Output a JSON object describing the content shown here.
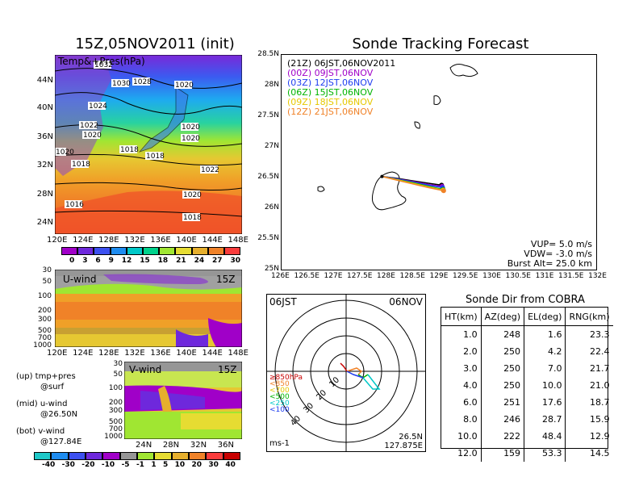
{
  "left_panel": {
    "title": "15Z,05NOV2011 (init)",
    "map_label": "Temp&+Pres(hPa)",
    "lat_labels": [
      "44N",
      "40N",
      "36N",
      "32N",
      "28N",
      "24N"
    ],
    "lon_labels": [
      "120E",
      "124E",
      "128E",
      "132E",
      "136E",
      "140E",
      "144E",
      "148E"
    ],
    "isobar_labels": [
      "1032",
      "1030",
      "1028",
      "1020",
      "1024",
      "1022",
      "1020",
      "1020",
      "1020",
      "1018",
      "1018",
      "1018",
      "1016",
      "1022",
      "1020",
      "1018",
      "1020"
    ],
    "temp_colorbar": [
      "0",
      "3",
      "6",
      "9",
      "12",
      "15",
      "18",
      "21",
      "24",
      "27",
      "30"
    ],
    "temp_colors": [
      "#a000c8",
      "#6e28dc",
      "#3c50f0",
      "#1e8cf0",
      "#00c8c8",
      "#00d28c",
      "#a0e632",
      "#e6dc32",
      "#e6af2d",
      "#f08228",
      "#fa3c3c"
    ],
    "uwind_label": "U-wind",
    "uwind_time": "15Z",
    "vwind_label": "V-wind",
    "vwind_time": "15Z",
    "pressure_labels": [
      "30",
      "50",
      "100",
      "200",
      "300",
      "500",
      "700",
      "1000"
    ],
    "uwind_lon_labels": [
      "120E",
      "124E",
      "128E",
      "132E",
      "136E",
      "140E",
      "144E",
      "148E"
    ],
    "vwind_lat_labels": [
      "24N",
      "28N",
      "32N",
      "36N"
    ],
    "legend_lines": [
      "(up) tmp+pres",
      "@surf",
      "(mid) u-wind",
      "@26.50N",
      "(bot) v-wind",
      "@127.84E"
    ],
    "wind_colorbar": [
      "-40",
      "-30",
      "-20",
      "-10",
      "-5",
      "-1",
      "1",
      "5",
      "10",
      "20",
      "30",
      "40"
    ],
    "wind_colors": [
      "#1ec8c8",
      "#1e8cf0",
      "#3c50f0",
      "#6e28dc",
      "#a000c8",
      "#969696",
      "#a0e632",
      "#e6dc32",
      "#e6af2d",
      "#f08228",
      "#fa3c3c",
      "#c80000"
    ]
  },
  "tracking": {
    "title": "Sonde Tracking Forecast",
    "lat_labels": [
      "28.5N",
      "28N",
      "27.5N",
      "27N",
      "26.5N",
      "26N",
      "25.5N",
      "25N"
    ],
    "lon_labels": [
      "126E",
      "126.5E",
      "127E",
      "127.5E",
      "128E",
      "128.5E",
      "129E",
      "129.5E",
      "130E",
      "130.5E",
      "131E",
      "131.5E",
      "132E"
    ],
    "legend": [
      {
        "text": "(21Z) 06JST,06NOV2011",
        "color": "#000000"
      },
      {
        "text": "(00Z) 09JST,06NOV",
        "color": "#a000c8"
      },
      {
        "text": "(03Z) 12JST,06NOV",
        "color": "#1e3cf0"
      },
      {
        "text": "(06Z) 15JST,06NOV",
        "color": "#00b400"
      },
      {
        "text": "(09Z) 18JST,06NOV",
        "color": "#e6c800"
      },
      {
        "text": "(12Z) 21JST,06NOV",
        "color": "#f08228"
      }
    ],
    "params": [
      "VUP= 5.0 m/s",
      "VDW= -3.0 m/s",
      "Burst Alt= 25.0 km"
    ]
  },
  "polar": {
    "time": "06JST",
    "date": "06NOV",
    "ring_labels": [
      "10",
      "20",
      "30",
      "40"
    ],
    "unit": "ms-1",
    "location_lat": "26.5N",
    "location_lon": "127.875E",
    "level_legend": [
      {
        "text": "≥850hPa",
        "color": "#c80000"
      },
      {
        "text": "<850",
        "color": "#f08228"
      },
      {
        "text": "<700",
        "color": "#e6c800"
      },
      {
        "text": "<500",
        "color": "#00b400"
      },
      {
        "text": "<250",
        "color": "#00c8c8"
      },
      {
        "text": "<100",
        "color": "#1e3cf0"
      }
    ]
  },
  "sonde_table": {
    "title": "Sonde Dir from COBRA",
    "headers": [
      "HT(km)",
      "AZ(deg)",
      "EL(deg)",
      "RNG(km)"
    ],
    "rows": [
      [
        "1.0",
        "248",
        "1.6",
        "23.3"
      ],
      [
        "2.0",
        "250",
        "4.2",
        "22.4"
      ],
      [
        "3.0",
        "250",
        "7.0",
        "21.7"
      ],
      [
        "4.0",
        "250",
        "10.0",
        "21.0"
      ],
      [
        "6.0",
        "251",
        "17.6",
        "18.7"
      ],
      [
        "8.0",
        "246",
        "28.7",
        "15.9"
      ],
      [
        "10.0",
        "222",
        "48.4",
        "12.9"
      ],
      [
        "12.0",
        "159",
        "53.3",
        "14.5"
      ]
    ]
  },
  "chart_data": [
    {
      "type": "table",
      "title": "Sonde Dir from COBRA",
      "columns": [
        "HT(km)",
        "AZ(deg)",
        "EL(deg)",
        "RNG(km)"
      ],
      "rows": [
        [
          1.0,
          248,
          1.6,
          23.3
        ],
        [
          2.0,
          250,
          4.2,
          22.4
        ],
        [
          3.0,
          250,
          7.0,
          21.7
        ],
        [
          4.0,
          250,
          10.0,
          21.0
        ],
        [
          6.0,
          251,
          17.6,
          18.7
        ],
        [
          8.0,
          246,
          28.7,
          15.9
        ],
        [
          10.0,
          222,
          48.4,
          12.9
        ],
        [
          12.0,
          159,
          53.3,
          14.5
        ]
      ]
    },
    {
      "type": "line",
      "title": "Sonde Tracking Forecast",
      "xlim": [
        126,
        132
      ],
      "ylim": [
        25,
        28.5
      ],
      "series": [
        {
          "name": "(21Z) 06JST,06NOV2011",
          "color": "#000000",
          "x": [
            127.92,
            128.2,
            128.5,
            128.8,
            129.05
          ],
          "y": [
            26.52,
            26.49,
            26.45,
            26.41,
            26.38
          ]
        },
        {
          "name": "(00Z) 09JST,06NOV",
          "color": "#a000c8",
          "x": [
            127.92,
            128.2,
            128.5,
            128.8,
            129.06
          ],
          "y": [
            26.52,
            26.48,
            26.44,
            26.39,
            26.36
          ]
        },
        {
          "name": "(03Z) 12JST,06NOV",
          "color": "#1e3cf0",
          "x": [
            127.92,
            128.2,
            128.5,
            128.8,
            129.07
          ],
          "y": [
            26.52,
            26.48,
            26.43,
            26.38,
            26.34
          ]
        },
        {
          "name": "(06Z) 15JST,06NOV",
          "color": "#00b400",
          "x": [
            127.92,
            128.2,
            128.5,
            128.8,
            129.08
          ],
          "y": [
            26.52,
            26.47,
            26.42,
            26.36,
            26.31
          ]
        },
        {
          "name": "(09Z) 18JST,06NOV",
          "color": "#e6c800",
          "x": [
            127.92,
            128.2,
            128.5,
            128.8,
            129.08
          ],
          "y": [
            26.52,
            26.47,
            26.41,
            26.35,
            26.3
          ]
        },
        {
          "name": "(12Z) 21JST,06NOV",
          "color": "#f08228",
          "x": [
            127.92,
            128.2,
            128.5,
            128.8,
            129.09
          ],
          "y": [
            26.52,
            26.46,
            26.4,
            26.34,
            26.29
          ]
        }
      ]
    }
  ]
}
